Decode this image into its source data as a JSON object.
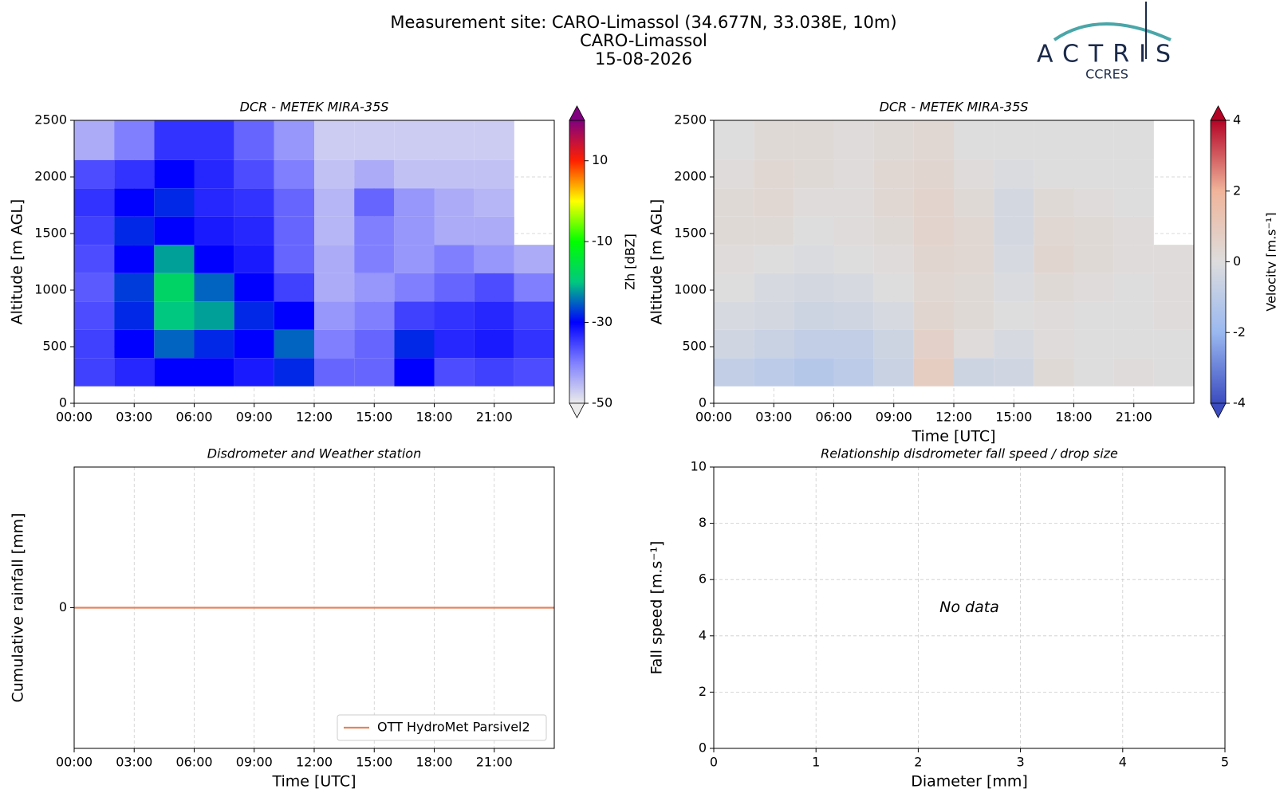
{
  "figure": {
    "title": [
      "Measurement site: CARO-Limassol (34.677N, 33.038E, 10m)",
      "CARO-Limassol",
      "15-08-2026"
    ]
  },
  "logo": {
    "name": "ACTRIS",
    "sub": "CCRES"
  },
  "chart_data": [
    {
      "type": "heatmap",
      "title": "DCR - METEK MIRA-35S",
      "ylabel": "Altitude [m AGL]",
      "x_edges": [
        0,
        2,
        4,
        6,
        8,
        10,
        12,
        14,
        16,
        18,
        20,
        22,
        24
      ],
      "y_edges": [
        150,
        400,
        650,
        900,
        1150,
        1400,
        1650,
        1900,
        2150,
        2500
      ],
      "values": [
        [
          -35,
          -33,
          -30,
          -30,
          -32,
          -28,
          -38,
          -38,
          -30,
          -36,
          -35,
          -36
        ],
        [
          -35,
          -30,
          -25,
          -28,
          -30,
          -25,
          -40,
          -38,
          -28,
          -33,
          -32,
          -34
        ],
        [
          -36,
          -28,
          -20,
          -22,
          -28,
          -30,
          -42,
          -40,
          -35,
          -34,
          -33,
          -35
        ],
        [
          -37,
          -27,
          -18,
          -25,
          -30,
          -35,
          -44,
          -42,
          -40,
          -38,
          -36,
          -40
        ],
        [
          -36,
          -30,
          -22,
          -30,
          -32,
          -38,
          -44,
          -40,
          -42,
          -40,
          -42,
          -44
        ],
        [
          -35,
          -28,
          -30,
          -32,
          -33,
          -38,
          -45,
          -40,
          -42,
          -44,
          -44,
          null
        ],
        [
          -34,
          -30,
          -28,
          -33,
          -34,
          -38,
          -45,
          -38,
          -42,
          -44,
          -45,
          null
        ],
        [
          -36,
          -34,
          -30,
          -33,
          -36,
          -40,
          -46,
          -44,
          -46,
          -46,
          -46,
          null
        ],
        [
          -44,
          -40,
          -34,
          -34,
          -38,
          -42,
          -47,
          -47,
          -47,
          -47,
          -47,
          null
        ]
      ],
      "xlim": [
        0,
        24
      ],
      "xticks": [
        {
          "value": 0,
          "label": "00:00"
        },
        {
          "value": 3,
          "label": "03:00"
        },
        {
          "value": 6,
          "label": "06:00"
        },
        {
          "value": 9,
          "label": "09:00"
        },
        {
          "value": 12,
          "label": "12:00"
        },
        {
          "value": 15,
          "label": "15:00"
        },
        {
          "value": 18,
          "label": "18:00"
        },
        {
          "value": 21,
          "label": "21:00"
        }
      ],
      "ylim": [
        0,
        2500
      ],
      "yticks": [
        0,
        500,
        1000,
        1500,
        2000,
        2500
      ],
      "grid": true,
      "colorbar": {
        "label": "Zh [dBZ]",
        "clim": [
          -50,
          20
        ],
        "ticks": [
          -50,
          -30,
          -10,
          10
        ],
        "colors": [
          "#ececec",
          "#8080ff",
          "#0000ff",
          "#00c880",
          "#00ff00",
          "#ffff00",
          "#ff2000",
          "#800080"
        ]
      }
    },
    {
      "type": "heatmap",
      "title": "DCR - METEK MIRA-35S",
      "ylabel": "Altitude [m AGL]",
      "xlabel": "Time [UTC]",
      "x_edges": [
        0,
        2,
        4,
        6,
        8,
        10,
        12,
        14,
        16,
        18,
        20,
        22,
        24
      ],
      "y_edges": [
        150,
        400,
        650,
        900,
        1150,
        1400,
        1650,
        1900,
        2150,
        2500
      ],
      "values": [
        [
          -0.8,
          -1.0,
          -1.2,
          -1.0,
          -0.6,
          0.8,
          -0.5,
          -0.4,
          0.2,
          0,
          0.1,
          0
        ],
        [
          -0.4,
          -0.6,
          -0.8,
          -0.8,
          -0.5,
          0.6,
          0.1,
          -0.2,
          0.1,
          0,
          0,
          0
        ],
        [
          -0.2,
          -0.3,
          -0.5,
          -0.4,
          -0.2,
          0.4,
          0.2,
          0,
          0.1,
          0,
          0,
          0.1
        ],
        [
          0,
          -0.2,
          -0.3,
          -0.2,
          0,
          0.3,
          0.2,
          -0.1,
          0.2,
          0.1,
          0,
          0.1
        ],
        [
          0.1,
          0,
          -0.1,
          0,
          0.1,
          0.4,
          0.3,
          -0.2,
          0.4,
          0.2,
          0.1,
          0.1
        ],
        [
          0.2,
          0.2,
          0,
          0.1,
          0.2,
          0.5,
          0.3,
          -0.3,
          0.3,
          0.2,
          0.1,
          null
        ],
        [
          0.2,
          0.3,
          0.1,
          0.1,
          0.3,
          0.5,
          0.2,
          -0.3,
          0.2,
          0.1,
          0,
          null
        ],
        [
          0.1,
          0.3,
          0.2,
          0.1,
          0.3,
          0.4,
          0.1,
          -0.1,
          0,
          0,
          0,
          null
        ],
        [
          0,
          0.2,
          0.2,
          0.1,
          0.2,
          0.3,
          0,
          0,
          0,
          0,
          0,
          null
        ]
      ],
      "xlim": [
        0,
        24
      ],
      "xticks": [
        {
          "value": 0,
          "label": "00:00"
        },
        {
          "value": 3,
          "label": "03:00"
        },
        {
          "value": 6,
          "label": "06:00"
        },
        {
          "value": 9,
          "label": "09:00"
        },
        {
          "value": 12,
          "label": "12:00"
        },
        {
          "value": 15,
          "label": "15:00"
        },
        {
          "value": 18,
          "label": "18:00"
        },
        {
          "value": 21,
          "label": "21:00"
        }
      ],
      "ylim": [
        0,
        2500
      ],
      "yticks": [
        0,
        500,
        1000,
        1500,
        2000,
        2500
      ],
      "grid": true,
      "colorbar": {
        "label": "Velocity [m.s⁻¹]",
        "clim": [
          -4,
          4
        ],
        "ticks": [
          -4,
          -2,
          0,
          2,
          4
        ],
        "colors": [
          "#3b4cc0",
          "#9ab8f0",
          "#dddddd",
          "#f0b49a",
          "#b40426"
        ]
      }
    },
    {
      "type": "line",
      "title": "Disdrometer and Weather station",
      "ylabel": "Cumulative rainfall [mm]",
      "xlabel": "Time [UTC]",
      "x": [
        0,
        24
      ],
      "series": [
        {
          "name": "OTT HydroMet Parsivel2",
          "color": "#e8825a",
          "values": [
            0,
            0
          ]
        }
      ],
      "xlim": [
        0,
        24
      ],
      "xticks": [
        {
          "value": 0,
          "label": "00:00"
        },
        {
          "value": 3,
          "label": "03:00"
        },
        {
          "value": 6,
          "label": "06:00"
        },
        {
          "value": 9,
          "label": "09:00"
        },
        {
          "value": 12,
          "label": "12:00"
        },
        {
          "value": 15,
          "label": "15:00"
        },
        {
          "value": 18,
          "label": "18:00"
        },
        {
          "value": 21,
          "label": "21:00"
        }
      ],
      "ylim": [
        -1,
        1
      ],
      "yticks": [
        0
      ],
      "grid": true,
      "legend": "lower right"
    },
    {
      "type": "scatter",
      "title": "Relationship disdrometer fall speed / drop size",
      "ylabel": "Fall speed [m.s⁻¹]",
      "xlabel": "Diameter [mm]",
      "x": [],
      "values": [],
      "annotation": "No data",
      "xlim": [
        0,
        5
      ],
      "xticks": [
        0,
        1,
        2,
        3,
        4,
        5
      ],
      "ylim": [
        0,
        10
      ],
      "yticks": [
        0,
        2,
        4,
        6,
        8,
        10
      ],
      "grid": true
    }
  ]
}
